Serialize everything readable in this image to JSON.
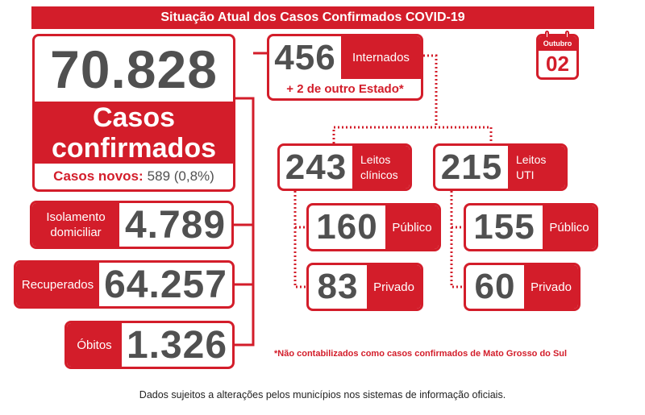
{
  "header": {
    "title": "Situação Atual dos Casos Confirmados COVID-19"
  },
  "calendar": {
    "month": "Outubro",
    "day": "02"
  },
  "confirmed": {
    "value": "70.828",
    "label_line1": "Casos",
    "label_line2": "confirmados",
    "new_label": "Casos novos:",
    "new_value": "589 (0,8%)"
  },
  "isolamento": {
    "label_line1": "Isolamento",
    "label_line2": "domiciliar",
    "value": "4.789"
  },
  "recuperados": {
    "label": "Recuperados",
    "value": "64.257"
  },
  "obitos": {
    "label": "Óbitos",
    "value": "1.326"
  },
  "internados": {
    "value": "456",
    "label": "Internados",
    "note": "+ 2 de outro Estado*"
  },
  "leitos_clinicos": {
    "value": "243",
    "label_line1": "Leitos",
    "label_line2": "clínicos",
    "publico": {
      "value": "160",
      "label": "Público"
    },
    "privado": {
      "value": "83",
      "label": "Privado"
    }
  },
  "leitos_uti": {
    "value": "215",
    "label_line1": "Leitos",
    "label_line2": "UTI",
    "publico": {
      "value": "155",
      "label": "Público"
    },
    "privado": {
      "value": "60",
      "label": "Privado"
    }
  },
  "footnote": "*Não contabilizados como casos confirmados de Mato Grosso do Sul",
  "footer": "Dados sujeitos a alterações pelos municípios nos sistemas de informação oficiais.",
  "colors": {
    "accent": "#d31d2a",
    "number": "#505050"
  }
}
